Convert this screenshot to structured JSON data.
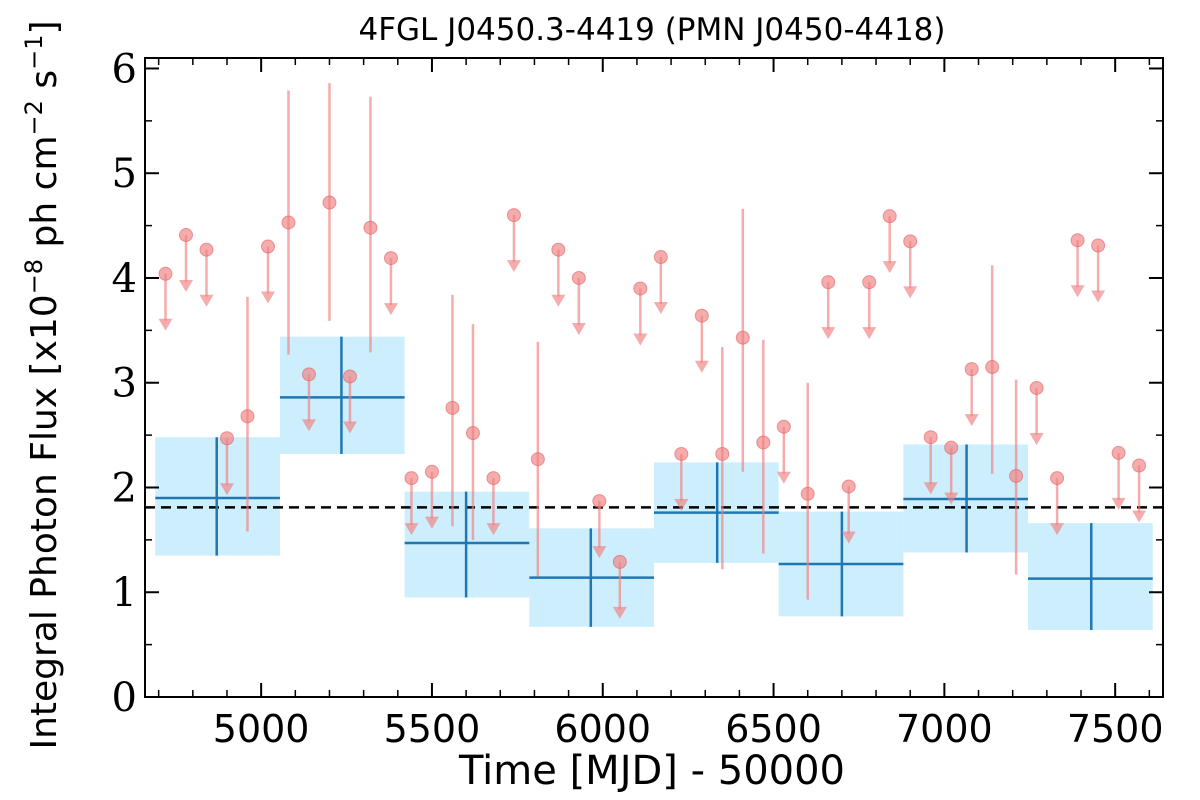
{
  "chart_data": {
    "type": "scatter",
    "title": "4FGL J0450.3-4419 (PMN J0450-4418)",
    "xlabel": "Time [MJD] - 50000",
    "ylabel": "Integral Photon Flux [x10",
    "ylabel_exp1": "−8",
    "ylabel_mid": " ph cm",
    "ylabel_exp2": "−2",
    "ylabel_mid2": " s",
    "ylabel_exp3": "−1",
    "ylabel_end": "]",
    "xlim": [
      4660,
      7640
    ],
    "ylim": [
      0,
      6.1
    ],
    "xticks": [
      5000,
      5500,
      6000,
      6500,
      7000,
      7500
    ],
    "yticks": [
      0,
      1,
      2,
      3,
      4,
      5,
      6
    ],
    "mean_flux": 1.81,
    "colors": {
      "bins": "#1f77b4",
      "bin_band": "#cdeefc",
      "points": "#f08080",
      "mean_line": "#000000"
    },
    "long_bins": [
      {
        "x0": 4690,
        "x1": 5055,
        "xc": 4870,
        "y": 1.9,
        "lo": 1.35,
        "hi": 2.48
      },
      {
        "x0": 5055,
        "x1": 5420,
        "xc": 5235,
        "y": 2.86,
        "lo": 2.32,
        "hi": 3.44
      },
      {
        "x0": 5420,
        "x1": 5785,
        "xc": 5600,
        "y": 1.47,
        "lo": 0.95,
        "hi": 1.96
      },
      {
        "x0": 5785,
        "x1": 6150,
        "xc": 5965,
        "y": 1.14,
        "lo": 0.67,
        "hi": 1.61
      },
      {
        "x0": 6150,
        "x1": 6515,
        "xc": 6335,
        "y": 1.76,
        "lo": 1.28,
        "hi": 2.24
      },
      {
        "x0": 6515,
        "x1": 6880,
        "xc": 6700,
        "y": 1.27,
        "lo": 0.77,
        "hi": 1.77
      },
      {
        "x0": 6880,
        "x1": 7245,
        "xc": 7065,
        "y": 1.89,
        "lo": 1.38,
        "hi": 2.41
      },
      {
        "x0": 7245,
        "x1": 7610,
        "xc": 7430,
        "y": 1.13,
        "lo": 0.64,
        "hi": 1.66
      }
    ],
    "short_bins": [
      {
        "x": 4720,
        "y": 4.04,
        "ul": true
      },
      {
        "x": 4780,
        "y": 4.41,
        "ul": true
      },
      {
        "x": 4840,
        "y": 4.27,
        "ul": true
      },
      {
        "x": 4900,
        "y": 2.47,
        "ul": true
      },
      {
        "x": 4960,
        "y": 2.68,
        "lo": 1.58,
        "hi": 3.82
      },
      {
        "x": 5020,
        "y": 4.3,
        "ul": true
      },
      {
        "x": 5080,
        "y": 4.53,
        "lo": 3.27,
        "hi": 5.79
      },
      {
        "x": 5140,
        "y": 3.08,
        "ul": true
      },
      {
        "x": 5200,
        "y": 4.72,
        "lo": 3.59,
        "hi": 5.86
      },
      {
        "x": 5260,
        "y": 3.06,
        "ul": true
      },
      {
        "x": 5320,
        "y": 4.48,
        "lo": 3.29,
        "hi": 5.73
      },
      {
        "x": 5380,
        "y": 4.19,
        "ul": true
      },
      {
        "x": 5440,
        "y": 2.09,
        "ul": true
      },
      {
        "x": 5500,
        "y": 2.15,
        "ul": true
      },
      {
        "x": 5560,
        "y": 2.76,
        "lo": 1.63,
        "hi": 3.84
      },
      {
        "x": 5620,
        "y": 2.52,
        "lo": 1.5,
        "hi": 3.56
      },
      {
        "x": 5680,
        "y": 2.09,
        "ul": true
      },
      {
        "x": 5740,
        "y": 4.6,
        "ul": true
      },
      {
        "x": 5810,
        "y": 2.27,
        "lo": 1.15,
        "hi": 3.39
      },
      {
        "x": 5870,
        "y": 4.27,
        "ul": true
      },
      {
        "x": 5930,
        "y": 4.0,
        "ul": true
      },
      {
        "x": 5990,
        "y": 1.87,
        "ul": true
      },
      {
        "x": 6050,
        "y": 1.29,
        "ul": true
      },
      {
        "x": 6110,
        "y": 3.9,
        "ul": true
      },
      {
        "x": 6170,
        "y": 4.2,
        "ul": true
      },
      {
        "x": 6230,
        "y": 2.32,
        "ul": true
      },
      {
        "x": 6290,
        "y": 3.64,
        "ul": true
      },
      {
        "x": 6350,
        "y": 2.32,
        "lo": 1.22,
        "hi": 3.34
      },
      {
        "x": 6410,
        "y": 3.43,
        "lo": 2.15,
        "hi": 4.66
      },
      {
        "x": 6470,
        "y": 2.43,
        "lo": 1.37,
        "hi": 3.41
      },
      {
        "x": 6530,
        "y": 2.58,
        "ul": true
      },
      {
        "x": 6600,
        "y": 1.94,
        "lo": 0.93,
        "hi": 3.0
      },
      {
        "x": 6660,
        "y": 3.96,
        "ul": true
      },
      {
        "x": 6720,
        "y": 2.01,
        "ul": true
      },
      {
        "x": 6780,
        "y": 3.96,
        "ul": true
      },
      {
        "x": 6840,
        "y": 4.59,
        "ul": true
      },
      {
        "x": 6900,
        "y": 4.35,
        "ul": true
      },
      {
        "x": 6960,
        "y": 2.48,
        "ul": true
      },
      {
        "x": 7020,
        "y": 2.38,
        "ul": true
      },
      {
        "x": 7080,
        "y": 3.13,
        "ul": true
      },
      {
        "x": 7140,
        "y": 3.15,
        "lo": 2.13,
        "hi": 4.12
      },
      {
        "x": 7210,
        "y": 2.11,
        "lo": 1.17,
        "hi": 3.03
      },
      {
        "x": 7270,
        "y": 2.95,
        "ul": true
      },
      {
        "x": 7330,
        "y": 2.09,
        "ul": true
      },
      {
        "x": 7390,
        "y": 4.36,
        "ul": true
      },
      {
        "x": 7450,
        "y": 4.31,
        "ul": true
      },
      {
        "x": 7510,
        "y": 2.33,
        "ul": true
      },
      {
        "x": 7570,
        "y": 2.21,
        "ul": true
      }
    ]
  }
}
